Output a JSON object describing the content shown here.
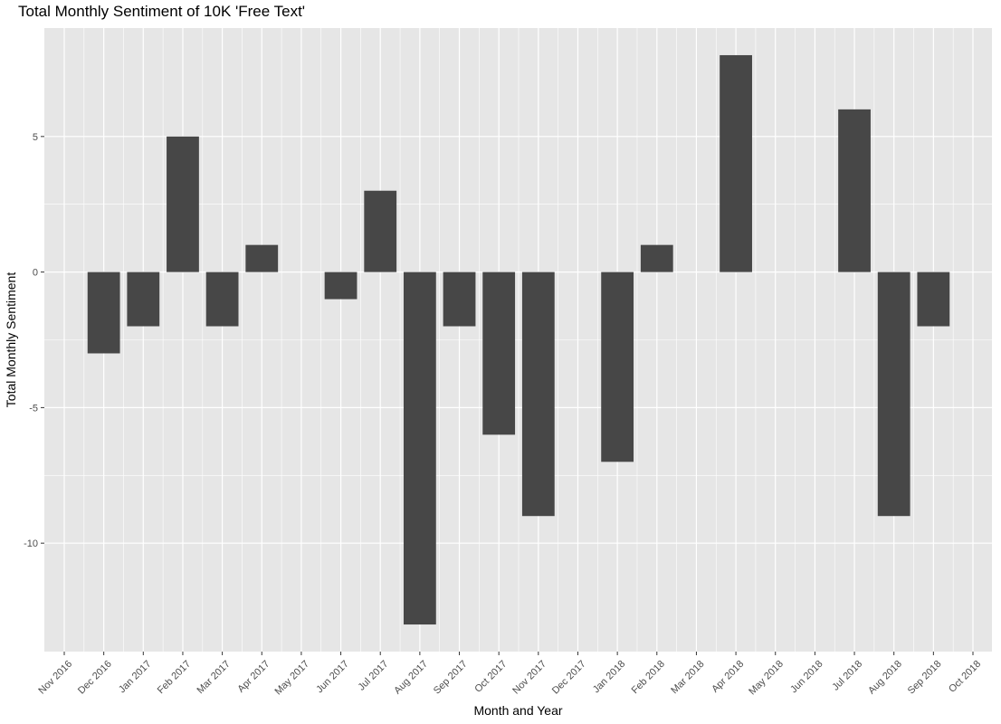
{
  "chart_data": {
    "type": "bar",
    "title": "Total Monthly Sentiment of 10K 'Free Text'",
    "xlabel": "Month and Year",
    "ylabel": "Total Monthly Sentiment",
    "x_ticks": [
      "Nov 2016",
      "Dec 2016",
      "Jan 2017",
      "Feb 2017",
      "Mar 2017",
      "Apr 2017",
      "May 2017",
      "Jun 2017",
      "Jul 2017",
      "Aug 2017",
      "Sep 2017",
      "Oct 2017",
      "Nov 2017",
      "Dec 2017",
      "Jan 2018",
      "Feb 2018",
      "Mar 2018",
      "Apr 2018",
      "May 2018",
      "Jun 2018",
      "Jul 2018",
      "Aug 2018",
      "Sep 2018",
      "Oct 2018"
    ],
    "categories": [
      "Dec 2016",
      "Jan 2017",
      "Feb 2017",
      "Mar 2017",
      "Apr 2017",
      "Jun 2017",
      "Jul 2017",
      "Aug 2017",
      "Sep 2017",
      "Oct 2017",
      "Nov 2017",
      "Jan 2018",
      "Feb 2018",
      "Apr 2018",
      "Jul 2018",
      "Aug 2018",
      "Sep 2018"
    ],
    "values": [
      -3,
      -2,
      5,
      -2,
      1,
      -1,
      3,
      -13,
      -2,
      -6,
      -9,
      -7,
      1,
      8,
      6,
      -9,
      -2
    ],
    "y_ticks": [
      5,
      0,
      -5,
      -10
    ],
    "y_tick_labels": [
      "5",
      "0",
      "-5",
      "-10"
    ],
    "ylim": [
      -14,
      9
    ],
    "grid": true,
    "colors": {
      "bar": "#474747",
      "panel": "#e6e6e6",
      "grid": "#ffffff"
    }
  }
}
